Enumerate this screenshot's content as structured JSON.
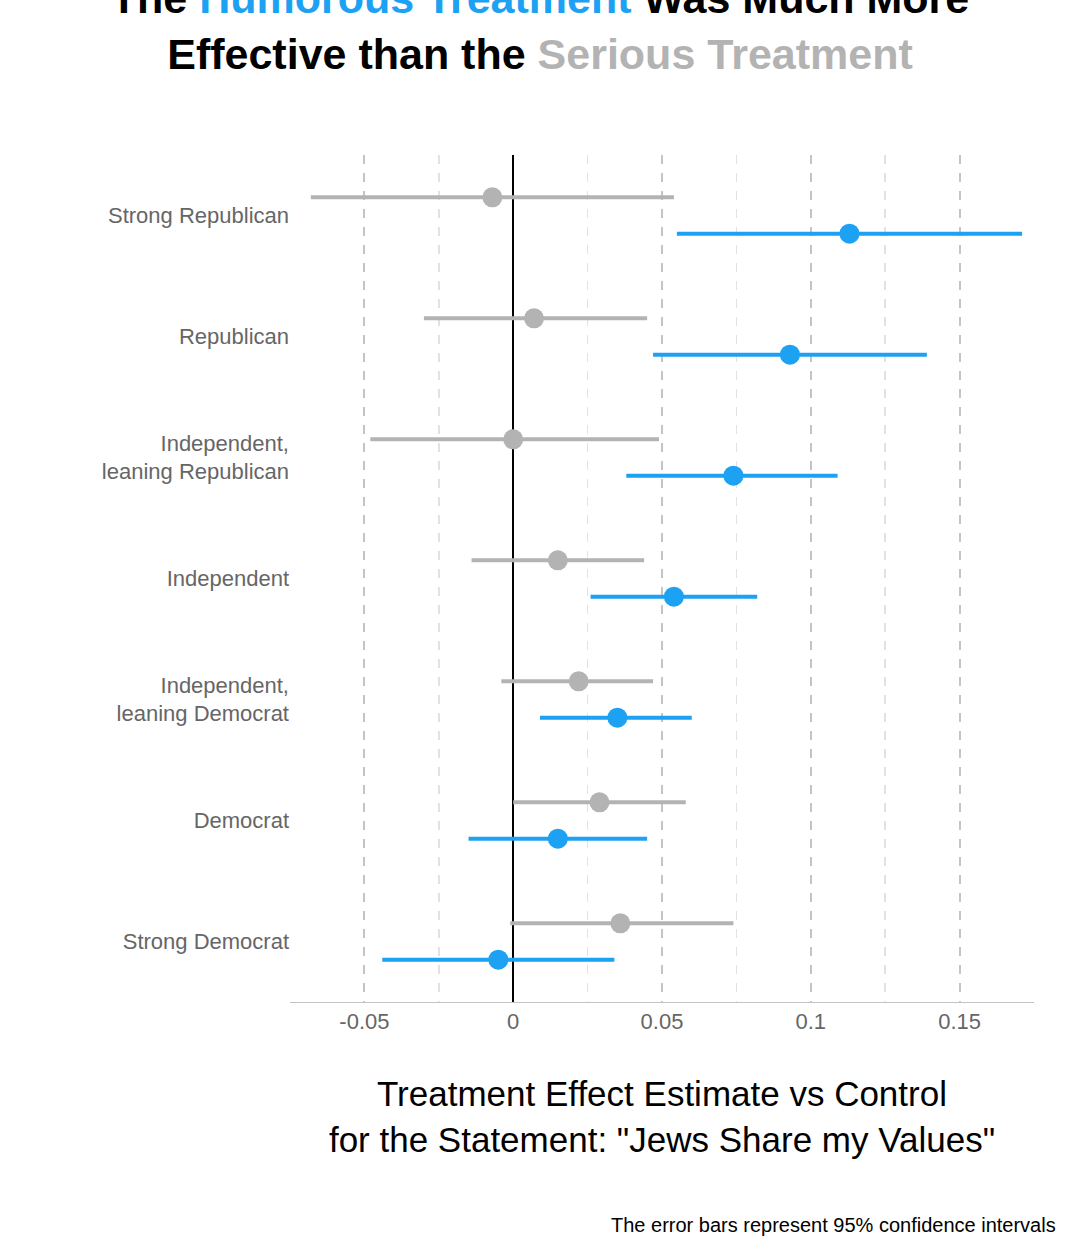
{
  "chart_data": {
    "type": "dot",
    "orientation": "horizontal",
    "title": "The Humorous Treatment Was Much More\nEffective than the Serious Treatment",
    "x_label": "Treatment Effect Estimate vs Control\nfor the Statement: \"Jews Share my Values\"",
    "caption": "The error bars represent 95% confidence intervals",
    "categories": [
      "Strong Republican",
      "Republican",
      "Independent,\nleaning Republican",
      "Independent",
      "Independent,\nleaning Democrat",
      "Democrat",
      "Strong Democrat"
    ],
    "series": [
      {
        "name": "Serious Treatment",
        "color": "#b3b3b3",
        "values": [
          -0.007,
          0.007,
          0.0,
          0.015,
          0.022,
          0.029,
          0.036
        ],
        "ci_low": [
          -0.068,
          -0.03,
          -0.048,
          -0.014,
          -0.004,
          0.0,
          -0.001
        ],
        "ci_high": [
          0.054,
          0.045,
          0.049,
          0.044,
          0.047,
          0.058,
          0.074
        ]
      },
      {
        "name": "Humorous Treatment",
        "color": "#1da1f2",
        "values": [
          0.113,
          0.093,
          0.074,
          0.054,
          0.035,
          0.015,
          -0.005
        ],
        "ci_low": [
          0.055,
          0.047,
          0.038,
          0.026,
          0.009,
          -0.015,
          -0.044
        ],
        "ci_high": [
          0.171,
          0.139,
          0.109,
          0.082,
          0.06,
          0.045,
          0.034
        ]
      }
    ],
    "xlim": [
      -0.075,
      0.175
    ],
    "xticks": [
      -0.05,
      0,
      0.05,
      0.1,
      0.15
    ],
    "grid": true
  }
}
